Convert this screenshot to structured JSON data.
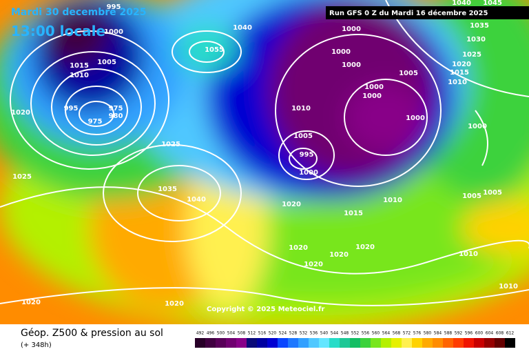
{
  "header": {
    "date": "Mardi 30 decembre 2025",
    "time": "13:00 locale",
    "run": "Run GFS 0 Z du Mardi 16 décembre 2025"
  },
  "copyright": "Copyright © 2025 Meteociel.fr",
  "footer": {
    "title": "Géop. Z500 & pression au sol",
    "lead": "(+ 348h)"
  },
  "isobar_labels": [
    "995",
    "1000",
    "1005",
    "1015",
    "1010",
    "1020",
    "995",
    "975",
    "980",
    "975",
    "1025",
    "1025",
    "1035",
    "1040",
    "1040",
    "1055",
    "1000",
    "1000",
    "1000",
    "1005",
    "1000",
    "1000",
    "1000",
    "1010",
    "1005",
    "995",
    "1000",
    "1010",
    "1020",
    "1015",
    "1020",
    "1020",
    "1020",
    "1020",
    "1020",
    "1020",
    "1010",
    "1010",
    "1005",
    "1005",
    "1035",
    "1030",
    "1025",
    "1020",
    "1015",
    "1010",
    "1000",
    "1040",
    "1045"
  ],
  "scale": {
    "values": [
      492,
      496,
      500,
      504,
      508,
      512,
      516,
      520,
      524,
      528,
      532,
      536,
      540,
      544,
      548,
      552,
      556,
      560,
      564,
      568,
      572,
      576,
      580,
      584,
      588,
      592,
      596,
      600,
      604,
      608,
      612
    ],
    "colors": [
      "#280028",
      "#400040",
      "#580058",
      "#700070",
      "#880088",
      "#0a0a78",
      "#0000a0",
      "#0000d2",
      "#0a46ff",
      "#1e78ff",
      "#32a0ff",
      "#50c8ff",
      "#64e6ff",
      "#28dcc8",
      "#1ec896",
      "#14be64",
      "#3cd23c",
      "#78e61e",
      "#b4f000",
      "#e6f000",
      "#fff050",
      "#ffd200",
      "#ffaa00",
      "#ff8c00",
      "#ff6400",
      "#ff3c00",
      "#f01400",
      "#c80000",
      "#960000",
      "#640000",
      "#000000"
    ]
  }
}
